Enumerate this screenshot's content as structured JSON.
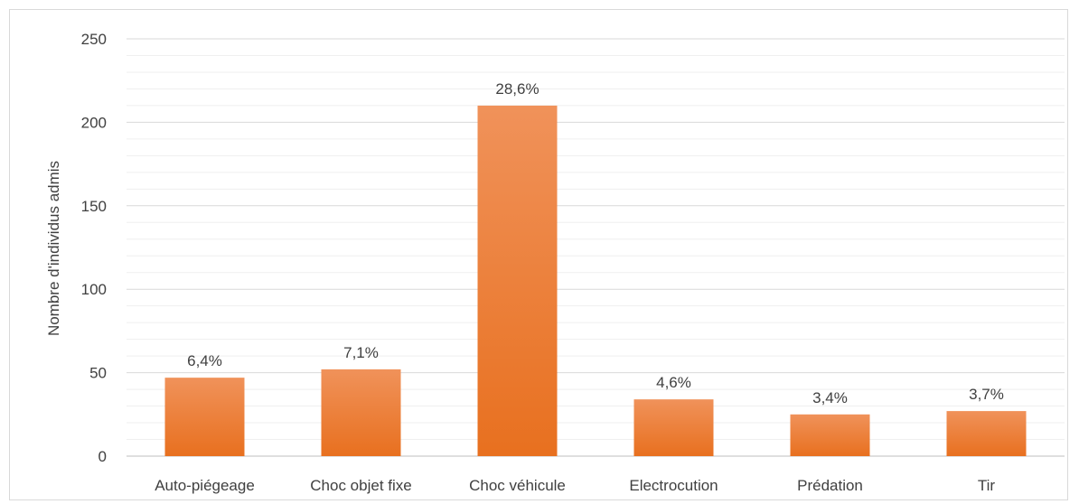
{
  "chart_data": {
    "type": "bar",
    "title": "",
    "xlabel": "",
    "ylabel": "Nombre d'individus admis",
    "ylim": [
      0,
      250
    ],
    "yticks": [
      0,
      50,
      100,
      150,
      200,
      250
    ],
    "minor_gridlines_step": 10,
    "grid": true,
    "legend": "none",
    "categories": [
      "Auto-piégeage",
      "Choc objet fixe",
      "Choc véhicule",
      "Electrocution",
      "Prédation",
      "Tir"
    ],
    "values": [
      47,
      52,
      210,
      34,
      25,
      27
    ],
    "data_labels": [
      "6,4%",
      "7,1%",
      "28,6%",
      "4,6%",
      "3,4%",
      "3,7%"
    ],
    "colors": {
      "bar_top": "#f0925a",
      "bar_bottom": "#e8701f",
      "major_grid": "#d9d9d9",
      "minor_grid": "#efefef",
      "text": "#404040",
      "axis": "#bfbfbf"
    }
  }
}
